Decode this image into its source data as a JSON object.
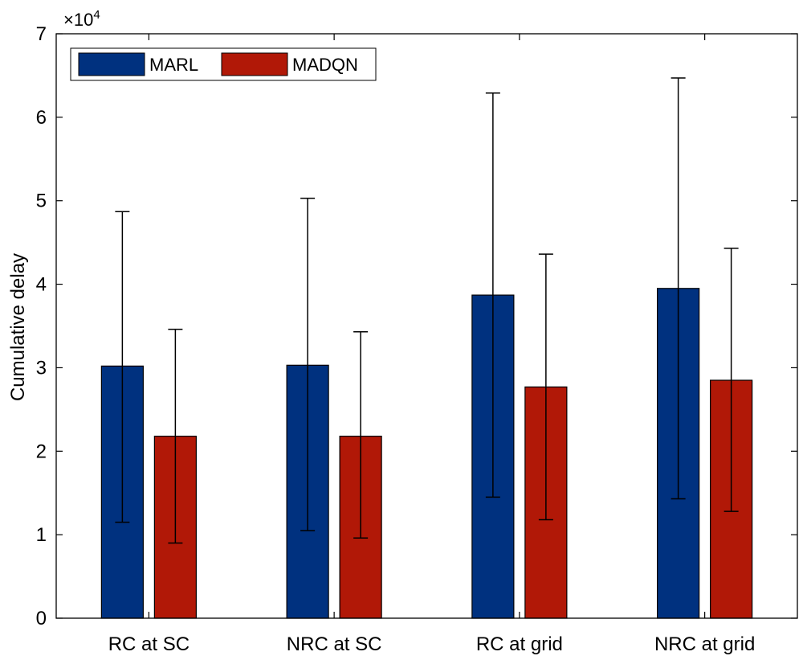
{
  "chart_data": {
    "type": "bar",
    "title": "",
    "xlabel": "",
    "ylabel": "Cumulative delay",
    "y_exponent_label": "×10",
    "y_exponent_power": "4",
    "y_scale_factor": 10000,
    "ylim": [
      0,
      70000
    ],
    "yticks": [
      0,
      10000,
      20000,
      30000,
      40000,
      50000,
      60000,
      70000
    ],
    "ytick_labels": [
      "0",
      "1",
      "2",
      "3",
      "4",
      "5",
      "6",
      "7"
    ],
    "grid": false,
    "legend_position": "top-left",
    "categories": [
      "RC at SC",
      "NRC at SC",
      "RC at grid",
      "NRC at grid"
    ],
    "series": [
      {
        "name": "MARL",
        "color": "#00317F",
        "values": [
          30200,
          30300,
          38700,
          39500
        ],
        "error_low": [
          11500,
          10500,
          14500,
          14300
        ],
        "error_high": [
          48700,
          50300,
          62900,
          64700
        ]
      },
      {
        "name": "MADQN",
        "color": "#B11807",
        "values": [
          21800,
          21800,
          27700,
          28500
        ],
        "error_low": [
          9000,
          9600,
          11800,
          12800
        ],
        "error_high": [
          34600,
          34300,
          43600,
          44300
        ]
      }
    ]
  }
}
